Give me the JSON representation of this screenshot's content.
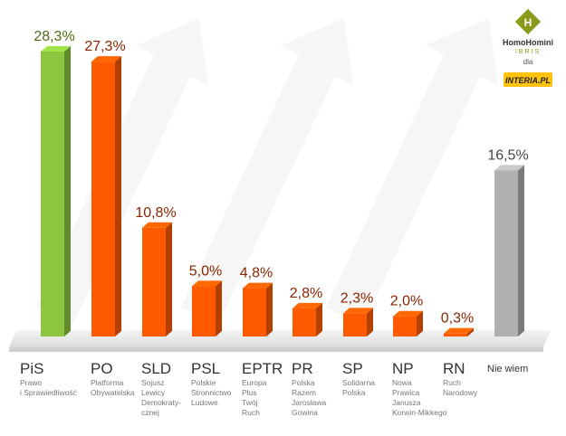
{
  "chart_data": {
    "type": "bar",
    "categories": [
      "PiS",
      "PO",
      "SLD",
      "PSL",
      "EPTR",
      "PR",
      "SP",
      "NP",
      "RN",
      "Nie wiem"
    ],
    "descriptions": [
      [
        "Prawo",
        "i Sprawiedliwość"
      ],
      [
        "Platforma",
        "Obywatelska"
      ],
      [
        "Sojusz",
        "Lewicy",
        "Demokraty-",
        "cznej"
      ],
      [
        "Polskie",
        "Stronnictwo",
        "Ludowe"
      ],
      [
        "Europa",
        "Plus",
        "Twój",
        "Ruch"
      ],
      [
        "Polska",
        "Razem",
        "Jarosława",
        "Gowina"
      ],
      [
        "Solidarna",
        "Polska"
      ],
      [
        "Nowa",
        "Prawica",
        "Janusza",
        "Korwin-Mikkego"
      ],
      [
        "Ruch",
        "Narodowy"
      ],
      null
    ],
    "values": [
      28.3,
      27.3,
      10.8,
      5.0,
      4.8,
      2.8,
      2.3,
      2.0,
      0.3,
      16.5
    ],
    "value_labels": [
      "28,3%",
      "27,3%",
      "10,8%",
      "5,0%",
      "4,8%",
      "2,8%",
      "2,3%",
      "2,0%",
      "0,3%",
      "16,5%"
    ],
    "colors": [
      "#8cc63f",
      "#ff5a00",
      "#ff5a00",
      "#ff5a00",
      "#ff5a00",
      "#ff5a00",
      "#ff5a00",
      "#ff5a00",
      "#ff5a00",
      "#b0b0b0"
    ]
  },
  "branding": {
    "name": "HomoHomini",
    "sub": "IBRIS",
    "for": "dla",
    "partner": "INTERIA.PL"
  }
}
